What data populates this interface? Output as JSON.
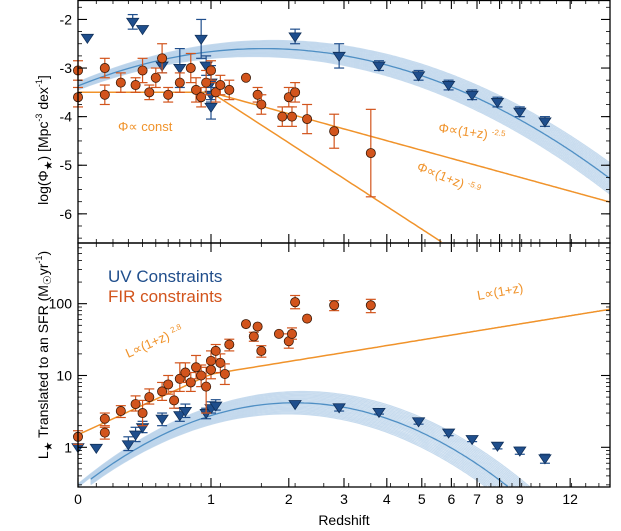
{
  "chart_data": [
    {
      "panel": "top",
      "type": "scatter",
      "ylabel": "log(Φ★) [Mpc⁻³ dex⁻¹]",
      "x_scale": "log(1+z)",
      "x_ticks": [
        0,
        1,
        2,
        3,
        4,
        5,
        6,
        7,
        8,
        9,
        12
      ],
      "xlim": [
        0,
        15
      ],
      "ylim": [
        -6.6,
        -1.6
      ],
      "y_ticks": [
        -6,
        -5,
        -4,
        -3,
        -2
      ],
      "y_tick_labels": [
        "-6",
        "-5",
        "-4",
        "-3",
        "-2"
      ],
      "series": [
        {
          "name": "UV Constraints",
          "color": "#1f4e8c",
          "marker": "triangle-down",
          "points": [
            {
              "x": 0.05,
              "y": -2.38,
              "err": 0.0
            },
            {
              "x": 0.33,
              "y": -2.05,
              "err": 0.15
            },
            {
              "x": 0.4,
              "y": -2.2,
              "err": 0.0
            },
            {
              "x": 0.55,
              "y": -2.95,
              "err": 0.15
            },
            {
              "x": 0.7,
              "y": -3.0,
              "err": 0.4
            },
            {
              "x": 0.9,
              "y": -2.4,
              "err": 0.4
            },
            {
              "x": 0.95,
              "y": -2.95,
              "err": 0.2
            },
            {
              "x": 1.0,
              "y": -3.3,
              "err": 0.35
            },
            {
              "x": 1.0,
              "y": -3.55,
              "err": 0.15
            },
            {
              "x": 1.0,
              "y": -3.8,
              "err": 0.25
            },
            {
              "x": 2.1,
              "y": -2.35,
              "err": 0.15
            },
            {
              "x": 2.9,
              "y": -2.75,
              "err": 0.25
            },
            {
              "x": 3.8,
              "y": -2.95,
              "err": 0.1
            },
            {
              "x": 4.9,
              "y": -3.15,
              "err": 0.1
            },
            {
              "x": 5.9,
              "y": -3.35,
              "err": 0.1
            },
            {
              "x": 6.8,
              "y": -3.55,
              "err": 0.1
            },
            {
              "x": 7.9,
              "y": -3.7,
              "err": 0.1
            },
            {
              "x": 9.0,
              "y": -3.9,
              "err": 0.1
            },
            {
              "x": 10.4,
              "y": -4.1,
              "err": 0.1
            }
          ]
        },
        {
          "name": "FIR constraints",
          "color": "#d2541c",
          "marker": "circle",
          "points": [
            {
              "x": 0.0,
              "y": -3.05,
              "err": 0.2
            },
            {
              "x": 0.0,
              "y": -3.6,
              "err": 0.2
            },
            {
              "x": 0.15,
              "y": -3.0,
              "err": 0.2
            },
            {
              "x": 0.15,
              "y": -3.55,
              "err": 0.2
            },
            {
              "x": 0.25,
              "y": -3.3,
              "err": 0.2
            },
            {
              "x": 0.35,
              "y": -3.35,
              "err": 0.15
            },
            {
              "x": 0.4,
              "y": -3.05,
              "err": 0.25
            },
            {
              "x": 0.45,
              "y": -3.5,
              "err": 0.15
            },
            {
              "x": 0.5,
              "y": -3.2,
              "err": 0.2
            },
            {
              "x": 0.55,
              "y": -2.8,
              "err": 0.3
            },
            {
              "x": 0.6,
              "y": -3.55,
              "err": 0.15
            },
            {
              "x": 0.7,
              "y": -3.3,
              "err": 0.2
            },
            {
              "x": 0.8,
              "y": -3.0,
              "err": 0.3
            },
            {
              "x": 0.85,
              "y": -3.45,
              "err": 0.25
            },
            {
              "x": 0.9,
              "y": -3.6,
              "err": 0.2
            },
            {
              "x": 0.95,
              "y": -3.3,
              "err": 0.25
            },
            {
              "x": 1.0,
              "y": -3.05,
              "err": 0.2
            },
            {
              "x": 1.05,
              "y": -3.5,
              "err": 0.2
            },
            {
              "x": 1.1,
              "y": -3.35,
              "err": 0.2
            },
            {
              "x": 1.2,
              "y": -3.45,
              "err": 0.2
            },
            {
              "x": 1.4,
              "y": -3.2,
              "err": 0.0
            },
            {
              "x": 1.55,
              "y": -3.55,
              "err": 0.15
            },
            {
              "x": 1.6,
              "y": -3.75,
              "err": 0.2
            },
            {
              "x": 1.9,
              "y": -4.0,
              "err": 0.2
            },
            {
              "x": 2.0,
              "y": -3.6,
              "err": 0.2
            },
            {
              "x": 2.05,
              "y": -4.0,
              "err": 0.2
            },
            {
              "x": 2.1,
              "y": -3.5,
              "err": 0.2
            },
            {
              "x": 2.3,
              "y": -4.05,
              "err": 0.3
            },
            {
              "x": 2.8,
              "y": -4.3,
              "err": 0.35
            },
            {
              "x": 3.6,
              "y": -4.75,
              "err": 0.9
            }
          ]
        }
      ],
      "annotations": [
        "Φ∝ const",
        "Φ∝(1+z)^-2.5",
        "Φ∝(1+z)^-5.9"
      ]
    },
    {
      "panel": "bottom",
      "type": "scatter",
      "xlabel": "Redshift",
      "ylabel": "L★ Translated to an SFR (M☉yr⁻¹)",
      "x_scale": "log(1+z)",
      "y_scale": "log",
      "x_ticks": [
        0,
        1,
        2,
        3,
        4,
        5,
        6,
        7,
        8,
        9,
        12
      ],
      "x_tick_labels": [
        "0",
        "1",
        "2",
        "3",
        "4",
        "5",
        "6",
        "7",
        "8",
        "9",
        "12"
      ],
      "xlim": [
        0,
        15
      ],
      "ylim": [
        0.28,
        700
      ],
      "y_ticks": [
        1,
        10,
        100
      ],
      "y_tick_labels": [
        "1",
        "10",
        "100"
      ],
      "legend": {
        "placement": "upper-left",
        "entries": [
          "UV Constraints",
          "FIR constraints"
        ]
      },
      "series": [
        {
          "name": "UV Constraints",
          "color": "#1f4e8c",
          "marker": "triangle-down",
          "points": [
            {
              "x": 0.0,
              "y": 1.0,
              "errlo": 0,
              "errhi": 0
            },
            {
              "x": 0.1,
              "y": 0.98,
              "errlo": 0,
              "errhi": 0
            },
            {
              "x": 0.3,
              "y": 1.1,
              "errlo": 0.2,
              "errhi": 0.3
            },
            {
              "x": 0.35,
              "y": 1.5,
              "errlo": 0.3,
              "errhi": 0.4
            },
            {
              "x": 0.4,
              "y": 1.9,
              "errlo": 0.3,
              "errhi": 0.4
            },
            {
              "x": 0.55,
              "y": 2.5,
              "errlo": 0.5,
              "errhi": 0.5
            },
            {
              "x": 0.7,
              "y": 2.8,
              "errlo": 0.5,
              "errhi": 0.7
            },
            {
              "x": 0.75,
              "y": 3.2,
              "errlo": 0.6,
              "errhi": 0.8
            },
            {
              "x": 0.95,
              "y": 3.0,
              "errlo": 0.5,
              "errhi": 0.5
            },
            {
              "x": 1.0,
              "y": 3.5,
              "errlo": 0.5,
              "errhi": 0.8
            },
            {
              "x": 1.05,
              "y": 3.8,
              "errlo": 0.5,
              "errhi": 0.8
            },
            {
              "x": 2.1,
              "y": 4.0,
              "errlo": 0,
              "errhi": 0
            },
            {
              "x": 2.9,
              "y": 3.6,
              "errlo": 0.4,
              "errhi": 0.4
            },
            {
              "x": 3.8,
              "y": 3.1,
              "errlo": 0.2,
              "errhi": 0.2
            },
            {
              "x": 4.9,
              "y": 2.3,
              "errlo": 0.2,
              "errhi": 0.2
            },
            {
              "x": 5.9,
              "y": 1.6,
              "errlo": 0.15,
              "errhi": 0.15
            },
            {
              "x": 6.8,
              "y": 1.3,
              "errlo": 0.1,
              "errhi": 0.1
            },
            {
              "x": 7.9,
              "y": 1.05,
              "errlo": 0.1,
              "errhi": 0.1
            },
            {
              "x": 9.0,
              "y": 0.9,
              "errlo": 0.1,
              "errhi": 0.1
            },
            {
              "x": 10.4,
              "y": 0.7,
              "errlo": 0.1,
              "errhi": 0.1
            }
          ]
        },
        {
          "name": "FIR constraints",
          "color": "#d2541c",
          "marker": "circle",
          "points": [
            {
              "x": 0.0,
              "y": 1.4,
              "errlo": 0.3,
              "errhi": 0.3
            },
            {
              "x": 0.15,
              "y": 2.5,
              "errlo": 0.5,
              "errhi": 0.5
            },
            {
              "x": 0.15,
              "y": 1.6,
              "errlo": 0.3,
              "errhi": 0.3
            },
            {
              "x": 0.25,
              "y": 3.2,
              "errlo": 0.6,
              "errhi": 0.6
            },
            {
              "x": 0.35,
              "y": 4.0,
              "errlo": 0.8,
              "errhi": 1.2
            },
            {
              "x": 0.4,
              "y": 3.0,
              "errlo": 1.0,
              "errhi": 1.5
            },
            {
              "x": 0.45,
              "y": 5.0,
              "errlo": 1.0,
              "errhi": 1.5
            },
            {
              "x": 0.55,
              "y": 6.0,
              "errlo": 1.5,
              "errhi": 2.0
            },
            {
              "x": 0.6,
              "y": 7.5,
              "errlo": 2.0,
              "errhi": 2.5
            },
            {
              "x": 0.65,
              "y": 4.5,
              "errlo": 1.0,
              "errhi": 1.5
            },
            {
              "x": 0.7,
              "y": 9.0,
              "errlo": 3.0,
              "errhi": 6.0
            },
            {
              "x": 0.75,
              "y": 11.0,
              "errlo": 3.0,
              "errhi": 4.0
            },
            {
              "x": 0.8,
              "y": 8.0,
              "errlo": 2.0,
              "errhi": 3.0
            },
            {
              "x": 0.85,
              "y": 13.0,
              "errlo": 4.0,
              "errhi": 6.0
            },
            {
              "x": 0.9,
              "y": 10.0,
              "errlo": 3.0,
              "errhi": 4.0
            },
            {
              "x": 0.95,
              "y": 7.0,
              "errlo": 4.0,
              "errhi": 6.0
            },
            {
              "x": 1.0,
              "y": 16.0,
              "errlo": 4.0,
              "errhi": 6.0
            },
            {
              "x": 1.0,
              "y": 12.0,
              "errlo": 3.0,
              "errhi": 3.0
            },
            {
              "x": 1.05,
              "y": 22.0,
              "errlo": 5.0,
              "errhi": 5.0
            },
            {
              "x": 1.1,
              "y": 15.0,
              "errlo": 4.0,
              "errhi": 5.0
            },
            {
              "x": 1.15,
              "y": 10.5,
              "errlo": 3.0,
              "errhi": 4.0
            },
            {
              "x": 1.2,
              "y": 27.0,
              "errlo": 5.0,
              "errhi": 5.0
            },
            {
              "x": 1.4,
              "y": 52.0,
              "errlo": 0,
              "errhi": 0
            },
            {
              "x": 1.5,
              "y": 35.0,
              "errlo": 5.0,
              "errhi": 5.0
            },
            {
              "x": 1.55,
              "y": 48.0,
              "errlo": 0,
              "errhi": 0
            },
            {
              "x": 1.6,
              "y": 22.0,
              "errlo": 4.0,
              "errhi": 4.0
            },
            {
              "x": 1.85,
              "y": 38.0,
              "errlo": 0,
              "errhi": 0
            },
            {
              "x": 2.0,
              "y": 30.0,
              "errlo": 6.0,
              "errhi": 8.0
            },
            {
              "x": 2.05,
              "y": 38.0,
              "errlo": 6.0,
              "errhi": 8.0
            },
            {
              "x": 2.1,
              "y": 105.0,
              "errlo": 20.0,
              "errhi": 25.0
            },
            {
              "x": 2.3,
              "y": 62.0,
              "errlo": 0,
              "errhi": 0
            },
            {
              "x": 2.8,
              "y": 95.0,
              "errlo": 15.0,
              "errhi": 15.0
            },
            {
              "x": 3.6,
              "y": 95.0,
              "errlo": 20.0,
              "errhi": 20.0
            }
          ]
        }
      ],
      "annotations": [
        "L∝(1+z)^2.8",
        "L∝(1+z)"
      ]
    }
  ],
  "labels": {
    "top_ylabel_main": "log(Φ",
    "top_ylabel_star": "★",
    "top_ylabel_units": ") [Mpc",
    "top_ylabel_exp1": "-3",
    "top_ylabel_dex": " dex",
    "top_ylabel_exp2": "-1",
    "top_ylabel_end": "]",
    "bottom_ylabel_L": "L",
    "bottom_ylabel_star": "★",
    "bottom_ylabel_text": " Translated to an SFR (M",
    "bottom_ylabel_sun": "☉",
    "bottom_ylabel_yr": "yr",
    "bottom_ylabel_exp": "-1",
    "bottom_ylabel_end": ")",
    "xlabel": "Redshift",
    "legend_uv": "UV Constraints",
    "legend_fir": "FIR constraints",
    "ann_const": "Φ∝ const",
    "ann_25_base": "Φ∝(1+z)",
    "ann_25_exp": "-2.5",
    "ann_59_base": "Φ∝(1+z)",
    "ann_59_exp": "-5.9",
    "ann_28_base": "L∝(1+z)",
    "ann_28_exp": "2.8",
    "ann_1": "L∝(1+z)"
  },
  "colors": {
    "uv": "#1f4e8c",
    "fir": "#d2541c",
    "band": "#b9d2ea",
    "fir_line": "#f0932b"
  }
}
